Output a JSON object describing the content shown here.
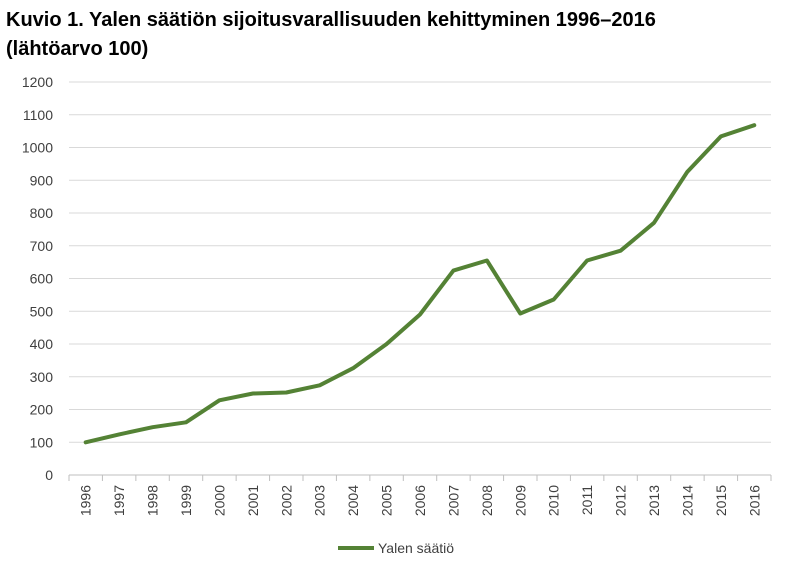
{
  "chart_data": {
    "type": "line",
    "title": "Kuvio 1. Yalen säätiön sijoitusvarallisuuden kehittyminen 1996–2016",
    "subtitle": "(lähtöarvo 100)",
    "x": [
      "1996",
      "1997",
      "1998",
      "1999",
      "2000",
      "2001",
      "2002",
      "2003",
      "2004",
      "2005",
      "2006",
      "2007",
      "2008",
      "2009",
      "2010",
      "2011",
      "2012",
      "2013",
      "2014",
      "2015",
      "2016"
    ],
    "series": [
      {
        "name": "Yalen säätiö",
        "color": "#548235",
        "values": [
          100,
          124,
          146,
          161,
          228,
          249,
          252,
          274,
          326,
          400,
          490,
          624,
          655,
          493,
          536,
          655,
          685,
          770,
          926,
          1034,
          1068
        ]
      }
    ],
    "ylim": [
      0,
      1200
    ],
    "yticks": [
      0,
      100,
      200,
      300,
      400,
      500,
      600,
      700,
      800,
      900,
      1000,
      1100,
      1200
    ],
    "grid": true,
    "legend_position": "bottom",
    "xlabel": "",
    "ylabel": ""
  }
}
